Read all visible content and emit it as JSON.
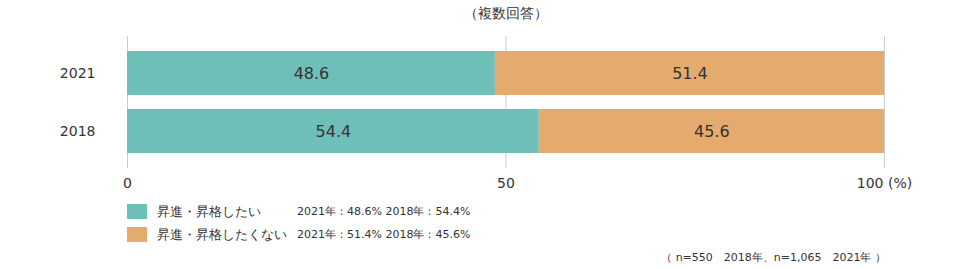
{
  "chart_data": {
    "type": "bar",
    "subtitle": "（複数回答）",
    "orientation": "horizontal",
    "stacked": true,
    "data_labels": true,
    "grid": true,
    "legend": "bottom-left",
    "categories": [
      "2021",
      "2018"
    ],
    "series": [
      {
        "name": "昇進・昇格したい",
        "color": "#6fbfb9",
        "values": [
          48.6,
          54.4
        ],
        "note": "2021年：48.6%  2018年：54.4%"
      },
      {
        "name": "昇進・昇格したくない",
        "color": "#e5aa6e",
        "values": [
          51.4,
          45.6
        ],
        "note": "2021年：51.4%  2018年：45.6%"
      }
    ],
    "xlim": [
      0,
      100
    ],
    "xticks": [
      0,
      50,
      100
    ],
    "xlabel": "(%)",
    "caption": "（ n=550　2018年、n=1,065　2021年 ）"
  }
}
